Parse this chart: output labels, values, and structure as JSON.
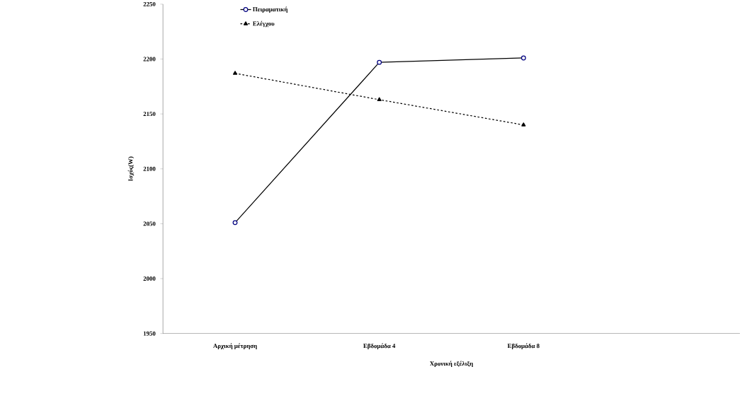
{
  "chart_data": {
    "type": "line",
    "xlabel": "Χρονική εξέλιξη",
    "ylabel": "Ισχύς(W)",
    "categories": [
      "Αρχική μέτρηση",
      "Εβδομάδα 4",
      "Εβδομάδα 8",
      null
    ],
    "series": [
      {
        "name": "Πειραματική",
        "color": "#000000",
        "marker": "circle",
        "line_style": "solid",
        "values": [
          2051,
          2197,
          2201,
          null
        ]
      },
      {
        "name": "Ελέγχου",
        "color": "#000000",
        "marker": "triangle",
        "line_style": "dashed",
        "values": [
          2187,
          2163,
          2140,
          null
        ]
      }
    ],
    "ylim": [
      1950,
      2250
    ],
    "yticks": [
      1950,
      2000,
      2050,
      2100,
      2150,
      2200,
      2250
    ],
    "grid": false,
    "legend": "top left"
  }
}
